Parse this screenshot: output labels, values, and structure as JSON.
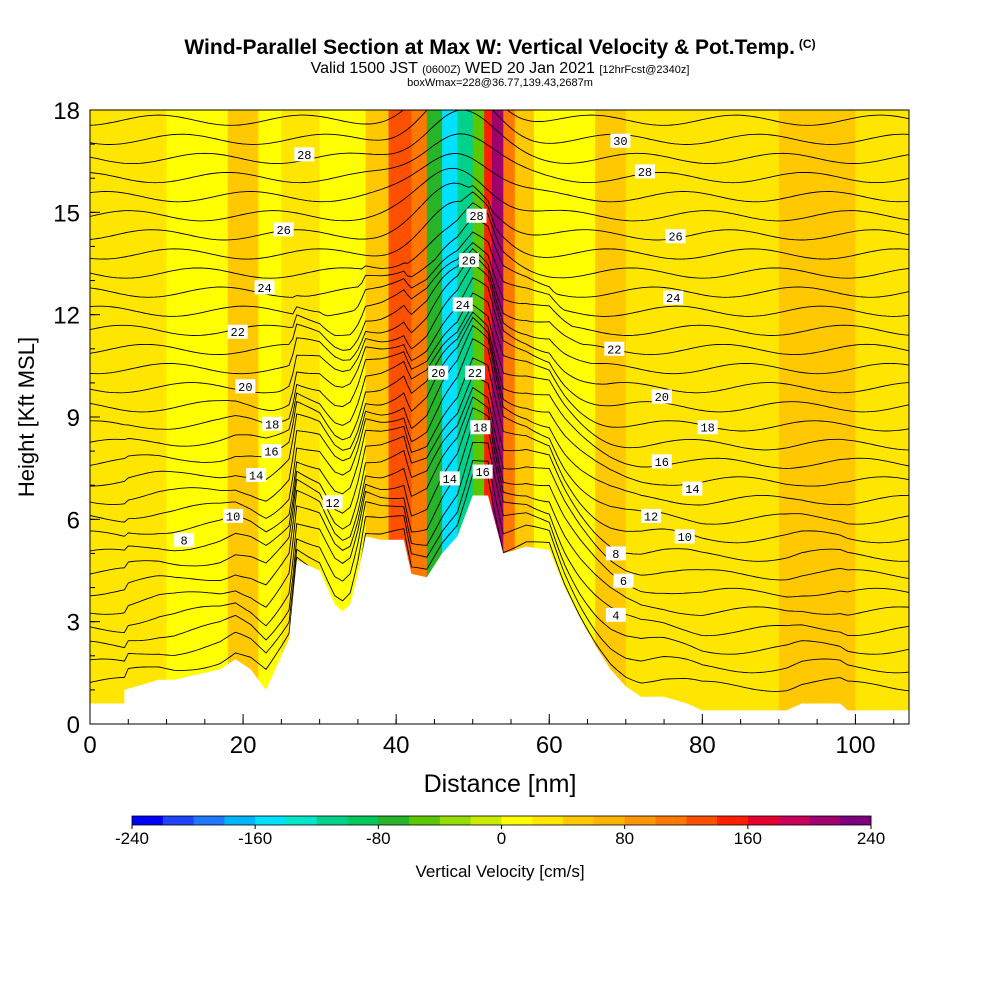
{
  "header": {
    "title_main": "Wind-Parallel Section at Max W: Vertical Velocity & Pot.Temp.",
    "title_mark": "(C)",
    "subtitle_a": "Valid 1500 JST",
    "subtitle_b": "(0600Z)",
    "subtitle_c": "WED 20 Jan 2021",
    "subtitle_d": "[12hrFcst@2340z]",
    "subtitle_2": "boxWmax=228@36.77,139.43,2687m"
  },
  "colorbar": {
    "label": "Vertical Velocity [cm/s]",
    "ticks": [
      "-240",
      "-160",
      "-80",
      "0",
      "80",
      "160",
      "240"
    ],
    "colors": [
      "#0000ff",
      "#1f44ff",
      "#1f78ff",
      "#00b4ff",
      "#00e0ff",
      "#00e6c8",
      "#00d28c",
      "#00c85a",
      "#28b428",
      "#5ac800",
      "#96dc00",
      "#c8eb00",
      "#ffff00",
      "#ffe600",
      "#ffc800",
      "#ffb400",
      "#ff9600",
      "#ff7800",
      "#ff5000",
      "#ff1e00",
      "#e6002d",
      "#c8005a",
      "#a0006e",
      "#7d007d"
    ]
  },
  "chart_data": {
    "type": "heatmap",
    "xlabel": "Distance [nm]",
    "ylabel": "Height [Kft MSL]",
    "xlim": [
      0,
      107
    ],
    "ylim": [
      0,
      18
    ],
    "xticks": [
      0,
      20,
      40,
      60,
      80,
      100
    ],
    "yticks": [
      0,
      3,
      6,
      9,
      12,
      15,
      18
    ],
    "terrain_profile": {
      "x": [
        0,
        4.5,
        4.5,
        9,
        11,
        17,
        19,
        21,
        23,
        26,
        27,
        30,
        32,
        33,
        34,
        35,
        36,
        38,
        41,
        42,
        44,
        46,
        48,
        50,
        52,
        54,
        57,
        60,
        62,
        64,
        66,
        68,
        70,
        72,
        75,
        78,
        80,
        85,
        90,
        91,
        93,
        98,
        99,
        107
      ],
      "y": [
        0.6,
        0.6,
        1,
        1.3,
        1.3,
        1.6,
        1.9,
        1.6,
        1,
        2.5,
        4.8,
        4.5,
        3.5,
        3.3,
        3.5,
        4.4,
        5.5,
        5.4,
        5.4,
        4.4,
        4.3,
        5,
        5.5,
        6.7,
        6.7,
        5,
        5.2,
        5.1,
        4,
        3.1,
        2.3,
        1.6,
        1.1,
        0.8,
        0.8,
        0.6,
        0.4,
        0.4,
        0.4,
        0.4,
        0.6,
        0.6,
        0.4,
        0.4
      ]
    },
    "vertical_velocity_columns": [
      {
        "x": [
          0,
          10
        ],
        "w": 25
      },
      {
        "x": [
          10,
          18
        ],
        "w": 10
      },
      {
        "x": [
          18,
          22
        ],
        "w": 40
      },
      {
        "x": [
          22,
          25
        ],
        "w": 15
      },
      {
        "x": [
          25,
          30
        ],
        "w": 30
      },
      {
        "x": [
          30,
          36
        ],
        "w": 15
      },
      {
        "x": [
          36,
          39
        ],
        "w": 55
      },
      {
        "x": [
          39,
          42
        ],
        "w": 130
      },
      {
        "x": [
          42,
          44
        ],
        "w": 100
      },
      {
        "x": [
          44,
          46
        ],
        "w": -70
      },
      {
        "x": [
          46,
          48
        ],
        "w": -155
      },
      {
        "x": [
          48,
          50
        ],
        "w": -120
      },
      {
        "x": [
          50,
          51.5
        ],
        "w": -50
      },
      {
        "x": [
          51.5,
          52.5
        ],
        "w": 150
      },
      {
        "x": [
          52.5,
          54
        ],
        "w": 215
      },
      {
        "x": [
          54,
          55.5
        ],
        "w": 110
      },
      {
        "x": [
          55.5,
          58
        ],
        "w": 50
      },
      {
        "x": [
          58,
          66
        ],
        "w": 15
      },
      {
        "x": [
          66,
          70
        ],
        "w": 55
      },
      {
        "x": [
          70,
          80
        ],
        "w": 20
      },
      {
        "x": [
          80,
          90
        ],
        "w": 35
      },
      {
        "x": [
          90,
          100
        ],
        "w": 45
      },
      {
        "x": [
          100,
          107
        ],
        "w": 20
      }
    ],
    "potential_temperature_labels": [
      {
        "text": "30",
        "x": 69.3,
        "y": 17.1
      },
      {
        "text": "28",
        "x": 28,
        "y": 16.7
      },
      {
        "text": "28",
        "x": 72.5,
        "y": 16.2
      },
      {
        "text": "28",
        "x": 50.5,
        "y": 14.9
      },
      {
        "text": "26",
        "x": 25.3,
        "y": 14.5
      },
      {
        "text": "26",
        "x": 76.5,
        "y": 14.3
      },
      {
        "text": "26",
        "x": 49.5,
        "y": 13.6
      },
      {
        "text": "24",
        "x": 22.8,
        "y": 12.8
      },
      {
        "text": "24",
        "x": 76.2,
        "y": 12.5
      },
      {
        "text": "24",
        "x": 48.7,
        "y": 12.3
      },
      {
        "text": "22",
        "x": 19.3,
        "y": 11.5
      },
      {
        "text": "22",
        "x": 68.5,
        "y": 11
      },
      {
        "text": "22",
        "x": 50.3,
        "y": 10.3
      },
      {
        "text": "20",
        "x": 20.3,
        "y": 9.9
      },
      {
        "text": "20",
        "x": 45.5,
        "y": 10.3
      },
      {
        "text": "20",
        "x": 74.7,
        "y": 9.6
      },
      {
        "text": "18",
        "x": 23.8,
        "y": 8.8
      },
      {
        "text": "18",
        "x": 80.7,
        "y": 8.7
      },
      {
        "text": "18",
        "x": 51,
        "y": 8.7
      },
      {
        "text": "16",
        "x": 23.7,
        "y": 8
      },
      {
        "text": "16",
        "x": 74.7,
        "y": 7.7
      },
      {
        "text": "16",
        "x": 51.3,
        "y": 7.4
      },
      {
        "text": "14",
        "x": 21.7,
        "y": 7.3
      },
      {
        "text": "14",
        "x": 78.7,
        "y": 6.9
      },
      {
        "text": "14",
        "x": 47,
        "y": 7.2
      },
      {
        "text": "12",
        "x": 31.7,
        "y": 6.5
      },
      {
        "text": "12",
        "x": 73.3,
        "y": 6.1
      },
      {
        "text": "10",
        "x": 18.7,
        "y": 6.1
      },
      {
        "text": "10",
        "x": 77.7,
        "y": 5.5
      },
      {
        "text": "8",
        "x": 12.3,
        "y": 5.4
      },
      {
        "text": "8",
        "x": 68.7,
        "y": 5
      },
      {
        "text": "6",
        "x": 69.7,
        "y": 4.2
      },
      {
        "text": "4",
        "x": 68.7,
        "y": 3.2
      }
    ]
  }
}
